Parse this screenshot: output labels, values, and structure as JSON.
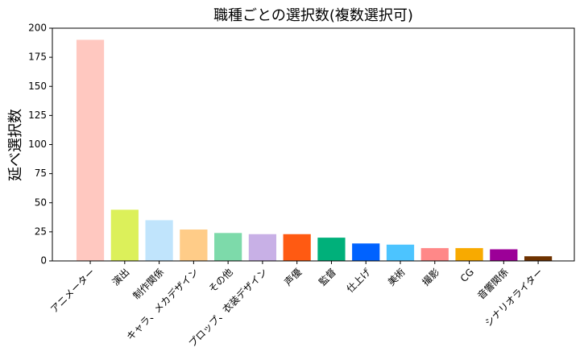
{
  "chart_data": {
    "type": "bar",
    "title": "職種ごとの選択数(複数選択可)",
    "ylabel": "延べ選択数",
    "categories": [
      "アニメーター",
      "演出",
      "制作関係",
      "キャラ、メカデザイン",
      "その他",
      "プロップ、衣装デザイン",
      "声優",
      "監督",
      "仕上げ",
      "美術",
      "撮影",
      "CG",
      "音響関係",
      "シナリオライター"
    ],
    "values": [
      190,
      44,
      35,
      27,
      24,
      23,
      23,
      20,
      15,
      14,
      11,
      11,
      10,
      4
    ],
    "colors": [
      "#ffc8c0",
      "#dcf05a",
      "#c0e4fc",
      "#ffcc88",
      "#7ddaaa",
      "#c8b0e6",
      "#ff5a12",
      "#00b07a",
      "#0062ff",
      "#4cc4ff",
      "#ff8888",
      "#f8aa00",
      "#9c0098",
      "#6e3200"
    ],
    "ylim": [
      0,
      200
    ],
    "yticks": [
      0,
      25,
      50,
      75,
      100,
      125,
      150,
      175,
      200
    ],
    "grid": false
  }
}
